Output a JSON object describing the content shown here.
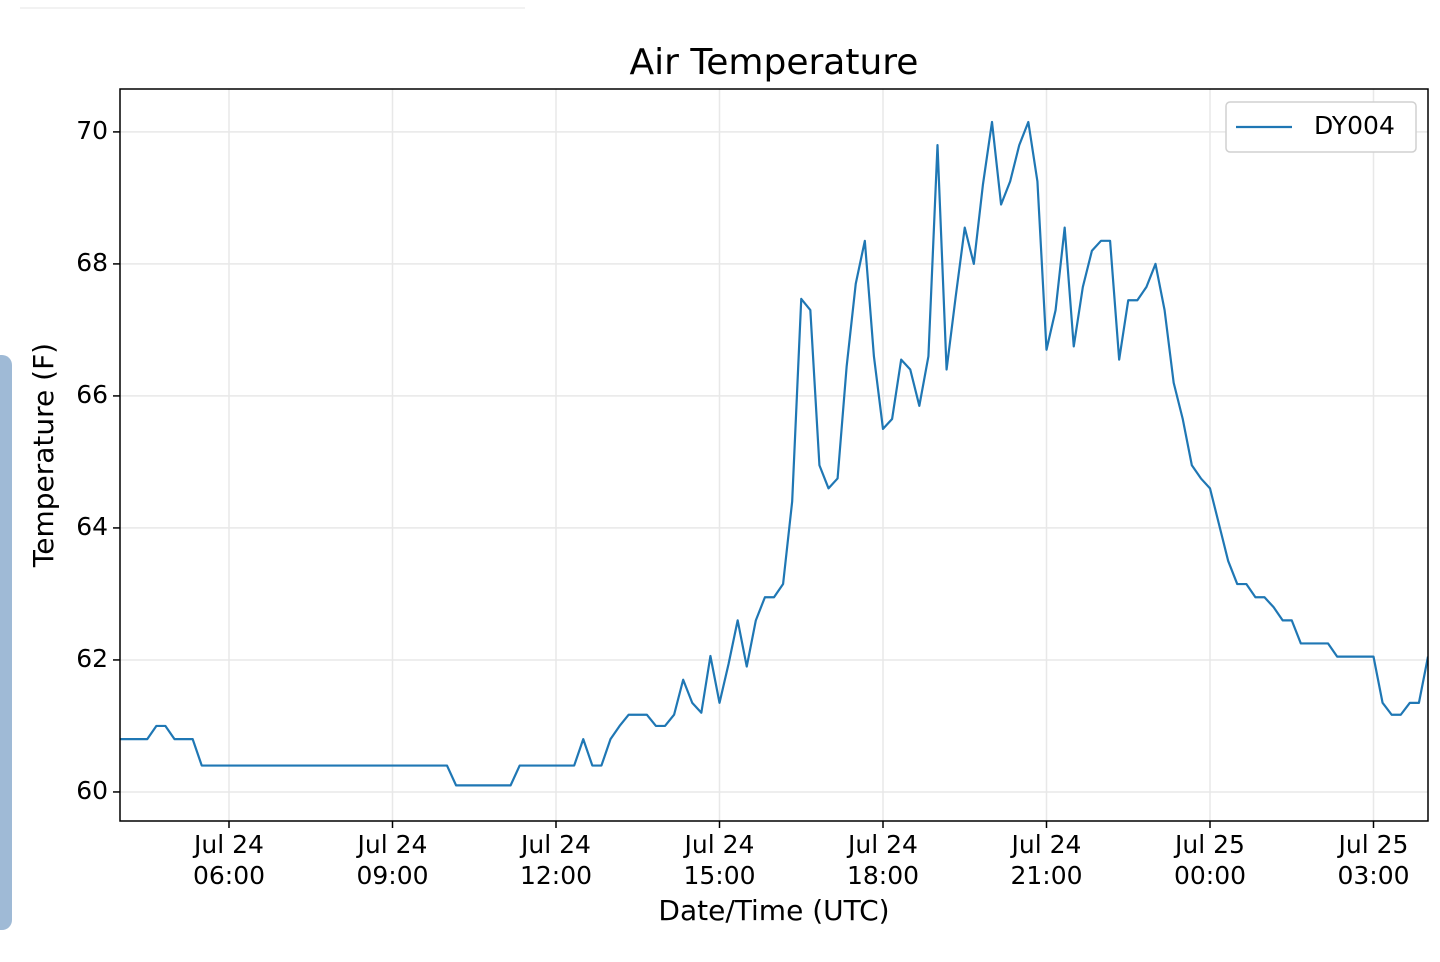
{
  "chart_data": {
    "type": "line",
    "title": "Air Temperature",
    "xlabel": "Date/Time (UTC)",
    "ylabel": "Temperature (F)",
    "x": [
      "Jul 24 04:00",
      "Jul 24 04:30",
      "Jul 24 04:40",
      "Jul 24 04:50",
      "Jul 24 05:00",
      "Jul 24 05:20",
      "Jul 24 05:30",
      "Jul 24 10:00",
      "Jul 24 10:10",
      "Jul 24 11:10",
      "Jul 24 11:20",
      "Jul 24 12:20",
      "Jul 24 12:30",
      "Jul 24 12:40",
      "Jul 24 12:50",
      "Jul 24 13:00",
      "Jul 24 13:10",
      "Jul 24 13:20",
      "Jul 24 13:40",
      "Jul 24 13:50",
      "Jul 24 14:00",
      "Jul 24 14:10",
      "Jul 24 14:20",
      "Jul 24 14:30",
      "Jul 24 14:40",
      "Jul 24 14:50",
      "Jul 24 15:00",
      "Jul 24 15:10",
      "Jul 24 15:20",
      "Jul 24 15:30",
      "Jul 24 15:40",
      "Jul 24 15:50",
      "Jul 24 16:00",
      "Jul 24 16:10",
      "Jul 24 16:20",
      "Jul 24 16:30",
      "Jul 24 16:40",
      "Jul 24 16:50",
      "Jul 24 17:00",
      "Jul 24 17:10",
      "Jul 24 17:20",
      "Jul 24 17:30",
      "Jul 24 17:40",
      "Jul 24 17:50",
      "Jul 24 18:00",
      "Jul 24 18:10",
      "Jul 24 18:20",
      "Jul 24 18:30",
      "Jul 24 18:40",
      "Jul 24 18:50",
      "Jul 24 19:00",
      "Jul 24 19:10",
      "Jul 24 19:20",
      "Jul 24 19:30",
      "Jul 24 19:40",
      "Jul 24 19:50",
      "Jul 24 20:00",
      "Jul 24 20:10",
      "Jul 24 20:20",
      "Jul 24 20:30",
      "Jul 24 20:40",
      "Jul 24 20:50",
      "Jul 24 21:00",
      "Jul 24 21:10",
      "Jul 24 21:20",
      "Jul 24 21:30",
      "Jul 24 21:40",
      "Jul 24 21:50",
      "Jul 24 22:00",
      "Jul 24 22:10",
      "Jul 24 22:20",
      "Jul 24 22:30",
      "Jul 24 22:40",
      "Jul 24 22:50",
      "Jul 24 23:00",
      "Jul 24 23:10",
      "Jul 24 23:20",
      "Jul 24 23:30",
      "Jul 24 23:40",
      "Jul 24 23:50",
      "Jul 25 00:00",
      "Jul 25 00:10",
      "Jul 25 00:20",
      "Jul 25 00:30",
      "Jul 25 00:40",
      "Jul 25 00:50",
      "Jul 25 01:00",
      "Jul 25 01:10",
      "Jul 25 01:20",
      "Jul 25 01:30",
      "Jul 25 01:40",
      "Jul 25 02:10",
      "Jul 25 02:20",
      "Jul 25 03:00",
      "Jul 25 03:10",
      "Jul 25 03:20",
      "Jul 25 03:30",
      "Jul 25 03:40",
      "Jul 25 03:50",
      "Jul 25 04:00"
    ],
    "series": [
      {
        "name": "DY004",
        "color": "#1f77b4",
        "values": [
          60.8,
          60.8,
          61.0,
          61.0,
          60.8,
          60.8,
          60.4,
          60.4,
          60.1,
          60.1,
          60.4,
          60.4,
          60.8,
          60.4,
          60.4,
          60.8,
          61.0,
          61.17,
          61.17,
          61.0,
          61.0,
          61.17,
          61.7,
          61.35,
          61.2,
          62.06,
          61.35,
          61.94,
          62.6,
          61.9,
          62.6,
          62.95,
          62.95,
          63.15,
          64.4,
          67.47,
          67.3,
          64.95,
          64.6,
          64.75,
          66.45,
          67.7,
          68.35,
          66.6,
          65.5,
          65.65,
          66.55,
          66.4,
          65.85,
          66.6,
          69.8,
          66.4,
          67.5,
          68.55,
          68.0,
          69.2,
          70.15,
          68.9,
          69.25,
          69.8,
          70.15,
          69.25,
          66.7,
          67.3,
          68.55,
          66.75,
          67.65,
          68.2,
          68.35,
          68.35,
          66.55,
          67.45,
          67.45,
          67.65,
          68.0,
          67.3,
          66.2,
          65.65,
          64.95,
          64.75,
          64.6,
          64.05,
          63.5,
          63.15,
          63.15,
          62.95,
          62.95,
          62.8,
          62.6,
          62.6,
          62.25,
          62.25,
          62.05,
          62.05,
          61.35,
          61.17,
          61.17,
          61.35,
          61.35,
          62.05
        ]
      }
    ],
    "xlim": [
      "Jul 24 04:00",
      "Jul 25 04:00"
    ],
    "xticks": [
      "Jul 24 06:00",
      "Jul 24 09:00",
      "Jul 24 12:00",
      "Jul 24 15:00",
      "Jul 24 18:00",
      "Jul 24 21:00",
      "Jul 25 00:00",
      "Jul 25 03:00"
    ],
    "ylim": [
      59.56,
      70.65
    ],
    "yticks": [
      60,
      62,
      64,
      66,
      68,
      70
    ],
    "grid": true,
    "legend": "upper right"
  }
}
